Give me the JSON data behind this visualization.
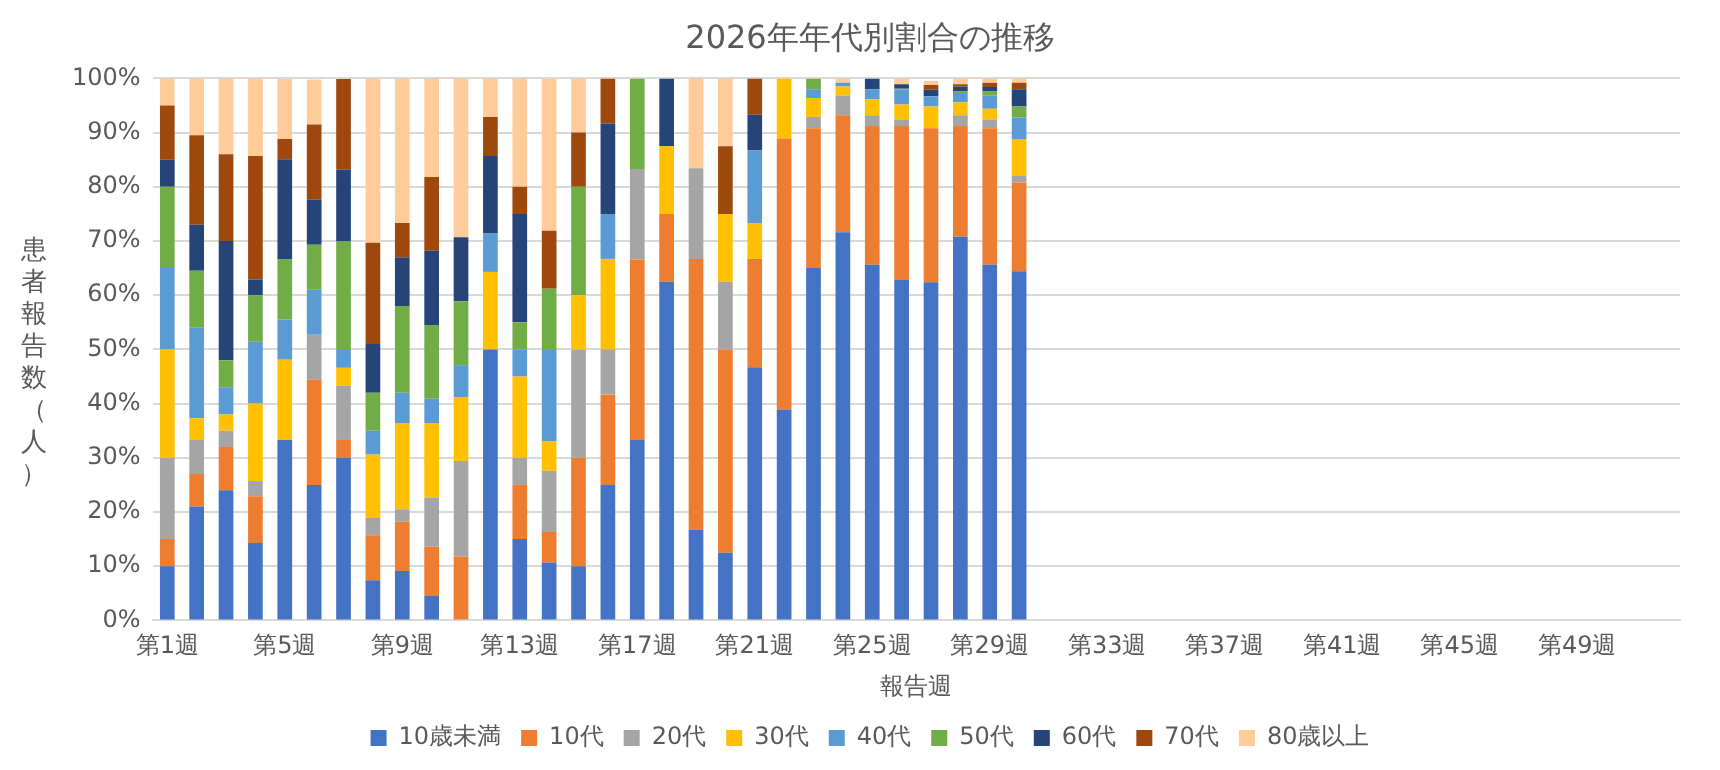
{
  "chart_data": {
    "type": "bar",
    "title": "2026年年代別割合の推移",
    "xlabel": "報告週",
    "ylabel": "患者報告数（人）",
    "categories": [
      "第1週",
      null,
      null,
      null,
      "第5週",
      null,
      null,
      null,
      "第9週",
      null,
      null,
      null,
      "第13週",
      null,
      null,
      null,
      "第17週",
      null,
      null,
      null,
      "第21週",
      null,
      null,
      null,
      "第25週",
      null,
      null,
      null,
      "第29週",
      null,
      null,
      null,
      "第33週",
      null,
      null,
      null,
      "第37週",
      null,
      null,
      null,
      "第41週",
      null,
      null,
      null,
      "第45週",
      null,
      null,
      null,
      "第49週",
      null,
      null,
      null
    ],
    "stacked": true,
    "grid": "y",
    "legend": "bottom",
    "ylim": [
      0,
      100
    ],
    "yticks": [
      {
        "value": 0,
        "label": "0%"
      },
      {
        "value": 10,
        "label": "10%"
      },
      {
        "value": 20,
        "label": "20%"
      },
      {
        "value": 30,
        "label": "30%"
      },
      {
        "value": 40,
        "label": "40%"
      },
      {
        "value": 50,
        "label": "50%"
      },
      {
        "value": 60,
        "label": "60%"
      },
      {
        "value": 70,
        "label": "70%"
      },
      {
        "value": 80,
        "label": "80%"
      },
      {
        "value": 90,
        "label": "90%"
      },
      {
        "value": 100,
        "label": "100%"
      }
    ],
    "series": [
      {
        "name": "10歳未満",
        "color": "#4472c4",
        "values": [
          10,
          21,
          24,
          14.3,
          33.3,
          25,
          30,
          7.4,
          9.1,
          4.5,
          0,
          50,
          15,
          10.7,
          10,
          25,
          33.3,
          62.5,
          16.7,
          12.5,
          46.7,
          38.9,
          65,
          71.6,
          65.6,
          62.8,
          62.4,
          70.8,
          65.6,
          64.4,
          null,
          null,
          null,
          null,
          null,
          null,
          null,
          null,
          null,
          null,
          null,
          null,
          null,
          null,
          null,
          null,
          null,
          null,
          null,
          null,
          null,
          null
        ]
      },
      {
        "name": "10代",
        "color": "#ed7d31",
        "values": [
          5,
          6,
          8,
          8.6,
          0,
          19.4,
          3.3,
          8.3,
          9.1,
          9.1,
          11.8,
          0,
          10,
          5.6,
          20,
          16.7,
          33.3,
          12.5,
          50,
          37.5,
          20,
          50,
          25.8,
          21.6,
          25.6,
          28.4,
          28.4,
          20.4,
          25.2,
          16.4,
          null,
          null,
          null,
          null,
          null,
          null,
          null,
          null,
          null,
          null,
          null,
          null,
          null,
          null,
          null,
          null,
          null,
          null,
          null,
          null,
          null,
          null
        ]
      },
      {
        "name": "20代",
        "color": "#a5a5a5",
        "values": [
          15,
          6.3,
          3,
          2.8,
          0,
          8.3,
          10,
          3.2,
          2.3,
          9.1,
          17.6,
          0,
          5,
          11.3,
          20,
          8.3,
          16.7,
          0,
          16.7,
          12.5,
          0,
          0,
          2.1,
          3.6,
          2,
          1.2,
          null,
          2,
          1.6,
          1.2,
          null,
          null,
          null,
          null,
          null,
          null,
          null,
          null,
          null,
          null,
          null,
          null,
          null,
          null,
          null,
          null,
          null,
          null,
          null,
          null,
          null,
          null
        ]
      },
      {
        "name": "30代",
        "color": "#ffc000",
        "values": [
          20,
          4,
          3,
          14.3,
          14.8,
          0,
          3.3,
          11.7,
          15.9,
          13.7,
          11.8,
          14.3,
          15,
          5.5,
          10,
          16.7,
          0,
          12.5,
          0,
          12.5,
          6.6,
          11.1,
          3.5,
          1.7,
          2.9,
          2.8,
          4,
          2.4,
          2,
          6.8,
          null,
          null,
          null,
          null,
          null,
          null,
          null,
          null,
          null,
          null,
          null,
          null,
          null,
          null,
          null,
          null,
          null,
          null,
          null,
          null,
          null,
          null
        ]
      },
      {
        "name": "40代",
        "color": "#5b9bd5",
        "values": [
          15,
          16.7,
          5,
          11.4,
          7.4,
          8.3,
          3.3,
          4.4,
          5.6,
          4.5,
          5.9,
          7.1,
          5,
          16.8,
          0,
          8.3,
          0,
          0,
          0,
          0,
          13.4,
          0,
          1.6,
          0.7,
          1.9,
          2.7,
          1.9,
          1.7,
          2.4,
          4,
          null,
          null,
          null,
          null,
          null,
          null,
          null,
          null,
          null,
          null,
          null,
          null,
          null,
          null,
          null,
          null,
          null,
          null,
          null,
          null,
          null,
          null
        ]
      },
      {
        "name": "50代",
        "color": "#70ad47",
        "values": [
          15,
          10.5,
          5,
          8.6,
          11.1,
          8.3,
          20,
          7,
          16,
          13.6,
          11.8,
          0,
          5,
          11.3,
          20,
          0,
          16.7,
          0,
          0,
          0,
          0,
          0,
          2,
          0,
          0,
          0.2,
          null,
          0.3,
          0.8,
          2,
          null,
          null,
          null,
          null,
          null,
          null,
          null,
          null,
          null,
          null,
          null,
          null,
          null,
          null,
          null,
          null,
          null,
          null,
          null,
          null,
          null,
          null
        ]
      },
      {
        "name": "60代",
        "color": "#264478",
        "values": [
          5,
          8.5,
          22,
          2.9,
          18.5,
          8.3,
          13.3,
          9,
          9,
          13.7,
          11.8,
          14.3,
          20,
          0,
          0,
          16.7,
          0,
          12.5,
          0,
          0,
          6.6,
          0,
          0,
          0,
          2,
          0.8,
          1.2,
          0.9,
          0.8,
          3.2,
          null,
          null,
          null,
          null,
          null,
          null,
          null,
          null,
          null,
          null,
          null,
          null,
          null,
          null,
          null,
          null,
          null,
          null,
          null,
          null,
          null,
          null
        ]
      },
      {
        "name": "70代",
        "color": "#9e480e",
        "values": [
          10,
          16.5,
          16,
          22.8,
          3.7,
          13.9,
          16.7,
          18.7,
          6.3,
          13.6,
          0,
          7.2,
          5,
          10.7,
          10,
          8.3,
          0,
          0,
          0,
          12.5,
          6.7,
          0,
          0,
          0,
          0,
          0,
          0.9,
          0.4,
          0.8,
          1.2,
          null,
          null,
          null,
          null,
          null,
          null,
          null,
          null,
          null,
          null,
          null,
          null,
          null,
          null,
          null,
          null,
          null,
          null,
          null,
          null,
          null,
          null
        ]
      },
      {
        "name": "80歳以上",
        "color": "#ffcc99",
        "values": [
          5,
          10.5,
          14,
          14.3,
          11.1,
          8.3,
          0,
          30.3,
          26.7,
          18.2,
          29.4,
          7.1,
          20,
          28,
          10,
          0,
          0,
          0,
          16.7,
          12.5,
          0,
          0,
          0,
          0.8,
          0,
          1.1,
          0.7,
          1.1,
          0.8,
          0.8,
          null,
          null,
          null,
          null,
          null,
          null,
          null,
          null,
          null,
          null,
          null,
          null,
          null,
          null,
          null,
          null,
          null,
          null,
          null,
          null,
          null,
          null
        ]
      }
    ]
  }
}
